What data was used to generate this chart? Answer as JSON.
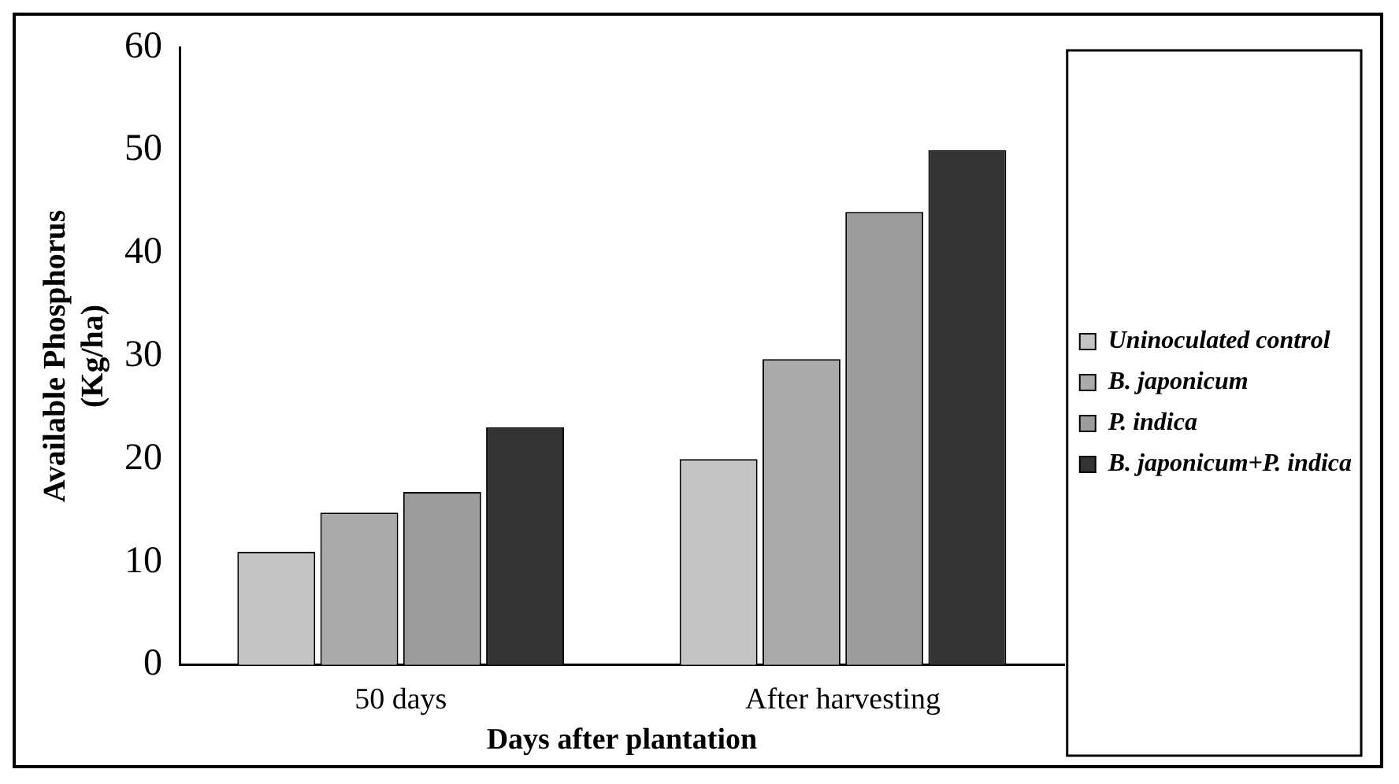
{
  "chart_data": {
    "type": "bar",
    "xlabel": "Days after plantation",
    "ylabel": "Available Phosphorus\n(Kg/ha)",
    "categories": [
      "50 days",
      "After harvesting"
    ],
    "series": [
      {
        "name": "Uninoculated control",
        "color": "#c4c4c4",
        "values": [
          11,
          20
        ]
      },
      {
        "name": "B. japonicum",
        "color": "#ababab",
        "values": [
          14.8,
          29.7
        ]
      },
      {
        "name": "P. indica",
        "color": "#9c9c9c",
        "values": [
          16.8,
          44
        ]
      },
      {
        "name": "B. japonicum+P. indica",
        "color": "#333333",
        "values": [
          23.1,
          50
        ]
      }
    ],
    "ylim": [
      0,
      60
    ],
    "yticks": [
      0,
      10,
      20,
      30,
      40,
      50,
      60
    ],
    "grid": false,
    "legend": "right"
  }
}
